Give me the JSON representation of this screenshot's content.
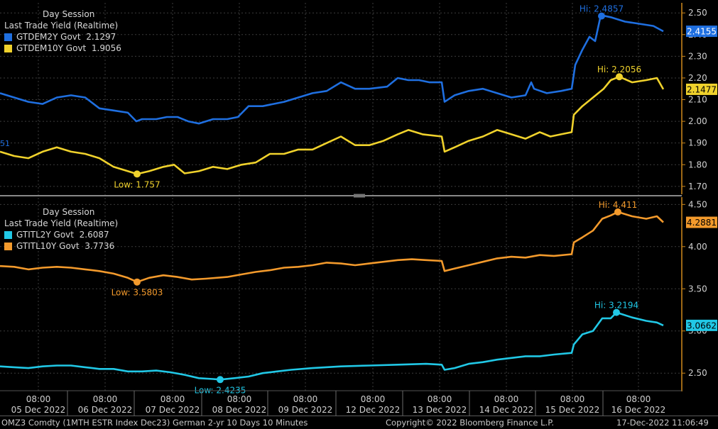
{
  "chart_data": [
    {
      "type": "line",
      "panel": "top",
      "title": "Day Session",
      "subtitle": "Last Trade Yield (Realtime)",
      "ylim": [
        1.67,
        2.54
      ],
      "yticks": [
        "1.70",
        "1.80",
        "1.90",
        "2.00",
        "2.10",
        "2.20",
        "2.30",
        "2.40",
        "2.50"
      ],
      "grid": true,
      "legend_position": "top-left",
      "cut_label": "51",
      "series": [
        {
          "name": "GTDEM2Y Govt",
          "legend_value": "2.1297",
          "color": "#1f6fe0",
          "last": "2.4155",
          "points": [
            [
              0,
              2.13
            ],
            [
              20,
              2.11
            ],
            [
              40,
              2.09
            ],
            [
              60,
              2.08
            ],
            [
              80,
              2.11
            ],
            [
              100,
              2.12
            ],
            [
              120,
              2.11
            ],
            [
              140,
              2.06
            ],
            [
              160,
              2.05
            ],
            [
              180,
              2.04
            ],
            [
              192,
              2.0
            ],
            [
              200,
              2.01
            ],
            [
              220,
              2.01
            ],
            [
              235,
              2.02
            ],
            [
              250,
              2.02
            ],
            [
              265,
              2.0
            ],
            [
              280,
              1.99
            ],
            [
              300,
              2.01
            ],
            [
              320,
              2.01
            ],
            [
              335,
              2.02
            ],
            [
              350,
              2.07
            ],
            [
              370,
              2.07
            ],
            [
              400,
              2.09
            ],
            [
              420,
              2.11
            ],
            [
              440,
              2.13
            ],
            [
              460,
              2.14
            ],
            [
              480,
              2.18
            ],
            [
              500,
              2.15
            ],
            [
              520,
              2.15
            ],
            [
              545,
              2.16
            ],
            [
              560,
              2.2
            ],
            [
              575,
              2.19
            ],
            [
              590,
              2.19
            ],
            [
              605,
              2.18
            ],
            [
              622,
              2.18
            ],
            [
              626,
              2.09
            ],
            [
              640,
              2.12
            ],
            [
              660,
              2.14
            ],
            [
              680,
              2.15
            ],
            [
              700,
              2.13
            ],
            [
              720,
              2.11
            ],
            [
              740,
              2.12
            ],
            [
              748,
              2.18
            ],
            [
              752,
              2.15
            ],
            [
              770,
              2.13
            ],
            [
              790,
              2.14
            ],
            [
              805,
              2.15
            ],
            [
              810,
              2.26
            ],
            [
              820,
              2.33
            ],
            [
              830,
              2.39
            ],
            [
              838,
              2.37
            ],
            [
              846,
              2.49
            ],
            [
              860,
              2.48
            ],
            [
              880,
              2.46
            ],
            [
              900,
              2.45
            ],
            [
              920,
              2.44
            ],
            [
              934,
              2.4155
            ]
          ],
          "annotation": {
            "label": "Hi: 2.4857",
            "x": 847,
            "y": 2.4857
          }
        },
        {
          "name": "GTDEM10Y Govt",
          "legend_value": "1.9056",
          "color": "#f0d22c",
          "last": "2.1477",
          "points": [
            [
              0,
              1.86
            ],
            [
              20,
              1.84
            ],
            [
              40,
              1.83
            ],
            [
              60,
              1.86
            ],
            [
              80,
              1.88
            ],
            [
              100,
              1.86
            ],
            [
              120,
              1.85
            ],
            [
              140,
              1.83
            ],
            [
              160,
              1.79
            ],
            [
              180,
              1.77
            ],
            [
              193,
              1.757
            ],
            [
              210,
              1.77
            ],
            [
              230,
              1.79
            ],
            [
              245,
              1.8
            ],
            [
              260,
              1.76
            ],
            [
              280,
              1.77
            ],
            [
              300,
              1.79
            ],
            [
              320,
              1.78
            ],
            [
              340,
              1.8
            ],
            [
              360,
              1.81
            ],
            [
              380,
              1.85
            ],
            [
              400,
              1.85
            ],
            [
              420,
              1.87
            ],
            [
              440,
              1.87
            ],
            [
              460,
              1.9
            ],
            [
              480,
              1.93
            ],
            [
              500,
              1.89
            ],
            [
              520,
              1.89
            ],
            [
              540,
              1.91
            ],
            [
              560,
              1.94
            ],
            [
              575,
              1.96
            ],
            [
              595,
              1.94
            ],
            [
              622,
              1.93
            ],
            [
              626,
              1.86
            ],
            [
              640,
              1.88
            ],
            [
              660,
              1.91
            ],
            [
              680,
              1.93
            ],
            [
              700,
              1.96
            ],
            [
              720,
              1.94
            ],
            [
              740,
              1.92
            ],
            [
              760,
              1.95
            ],
            [
              775,
              1.93
            ],
            [
              790,
              1.94
            ],
            [
              805,
              1.95
            ],
            [
              808,
              2.03
            ],
            [
              820,
              2.07
            ],
            [
              835,
              2.11
            ],
            [
              850,
              2.15
            ],
            [
              860,
              2.19
            ],
            [
              872,
              2.2056
            ],
            [
              890,
              2.18
            ],
            [
              910,
              2.19
            ],
            [
              925,
              2.2
            ],
            [
              934,
              2.1477
            ]
          ],
          "annotation": {
            "label": "Hi: 2.2056",
            "x": 872,
            "y": 2.2056
          },
          "annotation_low": {
            "label": "Low: 1.757",
            "x": 193,
            "y": 1.757
          }
        }
      ]
    },
    {
      "type": "line",
      "panel": "bottom",
      "title": "Day Session",
      "subtitle": "Last Trade Yield (Realtime)",
      "ylim": [
        2.3,
        4.57
      ],
      "yticks": [
        "2.50",
        "3.00",
        "3.50",
        "4.00",
        "4.50"
      ],
      "grid": true,
      "legend_position": "top-left",
      "series": [
        {
          "name": "GTITL2Y Govt",
          "legend_value": "2.6087",
          "color": "#21c8e6",
          "last": "3.0662",
          "points": [
            [
              0,
              2.58
            ],
            [
              20,
              2.57
            ],
            [
              40,
              2.56
            ],
            [
              60,
              2.58
            ],
            [
              80,
              2.59
            ],
            [
              100,
              2.59
            ],
            [
              120,
              2.57
            ],
            [
              140,
              2.55
            ],
            [
              160,
              2.55
            ],
            [
              180,
              2.52
            ],
            [
              200,
              2.52
            ],
            [
              220,
              2.53
            ],
            [
              240,
              2.51
            ],
            [
              260,
              2.48
            ],
            [
              280,
              2.44
            ],
            [
              300,
              2.43
            ],
            [
              310,
              2.4235
            ],
            [
              330,
              2.44
            ],
            [
              350,
              2.46
            ],
            [
              370,
              2.5
            ],
            [
              390,
              2.52
            ],
            [
              410,
              2.54
            ],
            [
              440,
              2.56
            ],
            [
              480,
              2.58
            ],
            [
              520,
              2.59
            ],
            [
              560,
              2.6
            ],
            [
              600,
              2.61
            ],
            [
              622,
              2.6
            ],
            [
              626,
              2.54
            ],
            [
              640,
              2.56
            ],
            [
              660,
              2.61
            ],
            [
              680,
              2.63
            ],
            [
              700,
              2.66
            ],
            [
              720,
              2.68
            ],
            [
              740,
              2.7
            ],
            [
              760,
              2.7
            ],
            [
              780,
              2.72
            ],
            [
              805,
              2.74
            ],
            [
              808,
              2.84
            ],
            [
              820,
              2.96
            ],
            [
              835,
              3.0
            ],
            [
              848,
              3.15
            ],
            [
              860,
              3.15
            ],
            [
              868,
              3.2194
            ],
            [
              890,
              3.16
            ],
            [
              910,
              3.12
            ],
            [
              925,
              3.1
            ],
            [
              934,
              3.0662
            ]
          ],
          "annotation": {
            "label": "Hi: 3.2194",
            "x": 868,
            "y": 3.2194
          },
          "annotation_low": {
            "label": "Low: 2.4235",
            "x": 310,
            "y": 2.4235
          }
        },
        {
          "name": "GTITL10Y Govt",
          "legend_value": "3.7736",
          "color": "#f39a2c",
          "last": "4.2881",
          "points": [
            [
              0,
              3.77
            ],
            [
              20,
              3.76
            ],
            [
              40,
              3.73
            ],
            [
              60,
              3.75
            ],
            [
              80,
              3.76
            ],
            [
              100,
              3.75
            ],
            [
              120,
              3.73
            ],
            [
              140,
              3.71
            ],
            [
              160,
              3.68
            ],
            [
              180,
              3.63
            ],
            [
              193,
              3.5803
            ],
            [
              210,
              3.63
            ],
            [
              230,
              3.66
            ],
            [
              250,
              3.64
            ],
            [
              270,
              3.61
            ],
            [
              290,
              3.62
            ],
            [
              320,
              3.64
            ],
            [
              340,
              3.67
            ],
            [
              360,
              3.7
            ],
            [
              380,
              3.72
            ],
            [
              400,
              3.75
            ],
            [
              420,
              3.76
            ],
            [
              440,
              3.78
            ],
            [
              460,
              3.81
            ],
            [
              480,
              3.8
            ],
            [
              500,
              3.78
            ],
            [
              520,
              3.8
            ],
            [
              540,
              3.82
            ],
            [
              560,
              3.84
            ],
            [
              580,
              3.85
            ],
            [
              600,
              3.84
            ],
            [
              622,
              3.83
            ],
            [
              626,
              3.71
            ],
            [
              640,
              3.74
            ],
            [
              660,
              3.78
            ],
            [
              680,
              3.82
            ],
            [
              700,
              3.86
            ],
            [
              720,
              3.88
            ],
            [
              740,
              3.87
            ],
            [
              760,
              3.9
            ],
            [
              780,
              3.89
            ],
            [
              805,
              3.91
            ],
            [
              808,
              4.05
            ],
            [
              820,
              4.11
            ],
            [
              835,
              4.19
            ],
            [
              848,
              4.33
            ],
            [
              860,
              4.37
            ],
            [
              870,
              4.411
            ],
            [
              890,
              4.36
            ],
            [
              910,
              4.33
            ],
            [
              925,
              4.36
            ],
            [
              934,
              4.2881
            ]
          ],
          "annotation": {
            "label": "Hi: 4.411",
            "x": 870,
            "y": 4.411
          },
          "annotation_low": {
            "label": "Low: 3.5803",
            "x": 193,
            "y": 3.5803
          }
        }
      ]
    }
  ],
  "x_axis": {
    "time_labels": [
      "08:00",
      "08:00",
      "08:00",
      "08:00",
      "08:00",
      "08:00",
      "08:00",
      "08:00",
      "08:00",
      "08:00"
    ],
    "date_labels": [
      "05 Dec 2022",
      "06 Dec 2022",
      "07 Dec 2022",
      "08 Dec 2022",
      "09 Dec 2022",
      "12 Dec 2022",
      "13 Dec 2022",
      "14 Dec 2022",
      "15 Dec 2022",
      "16 Dec 2022"
    ]
  },
  "footer": {
    "left": "OMZ3 Comdty (1MTH ESTR Index  Dec23) German 2-yr 10 Days 10 Minutes",
    "center": "Copyright© 2022 Bloomberg Finance L.P.",
    "right": "17-Dec-2022 11:06:49"
  }
}
